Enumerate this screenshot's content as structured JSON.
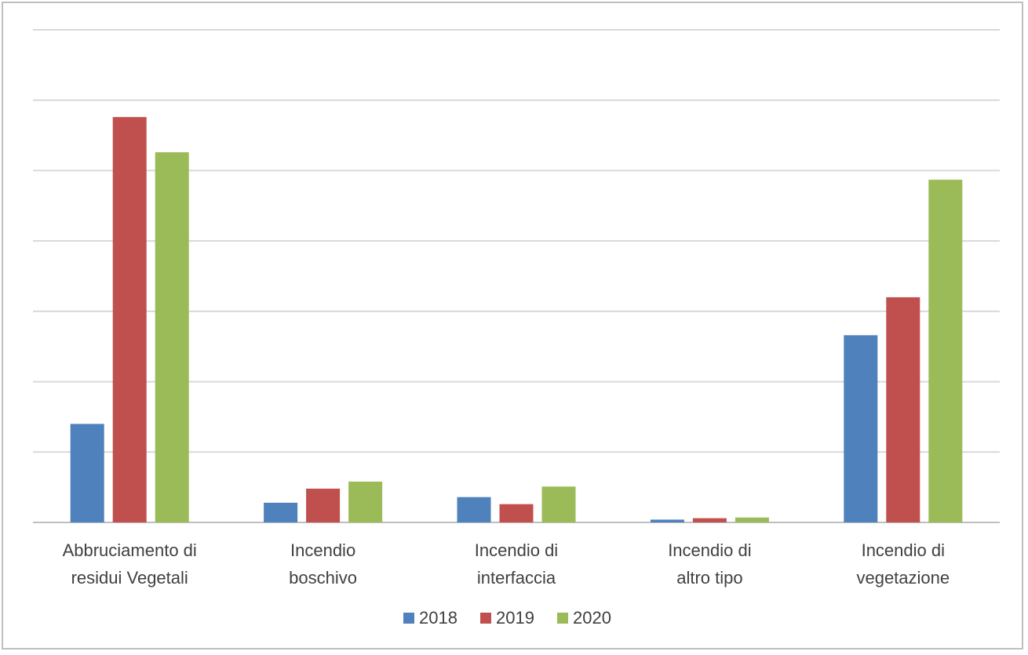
{
  "chart_data": {
    "type": "bar",
    "title": "",
    "xlabel": "",
    "ylabel": "",
    "ylim": [
      0,
      700
    ],
    "gridline_step": 100,
    "y_tick_labels_shown": false,
    "grid": true,
    "legend_position": "bottom",
    "categories": [
      [
        "Abbruciamento di",
        "residui  Vegetali"
      ],
      [
        "Incendio",
        "boschivo"
      ],
      [
        "Incendio di",
        "interfaccia"
      ],
      [
        "Incendio di",
        "altro tipo"
      ],
      [
        "Incendio di",
        "vegetazione"
      ]
    ],
    "series": [
      {
        "name": "2018",
        "color": "#4f81bd",
        "values": [
          140,
          28,
          36,
          4,
          266
        ]
      },
      {
        "name": "2019",
        "color": "#c0504d",
        "values": [
          576,
          48,
          26,
          6,
          320
        ]
      },
      {
        "name": "2020",
        "color": "#9bbb59",
        "values": [
          526,
          58,
          51,
          7,
          487
        ]
      }
    ]
  }
}
